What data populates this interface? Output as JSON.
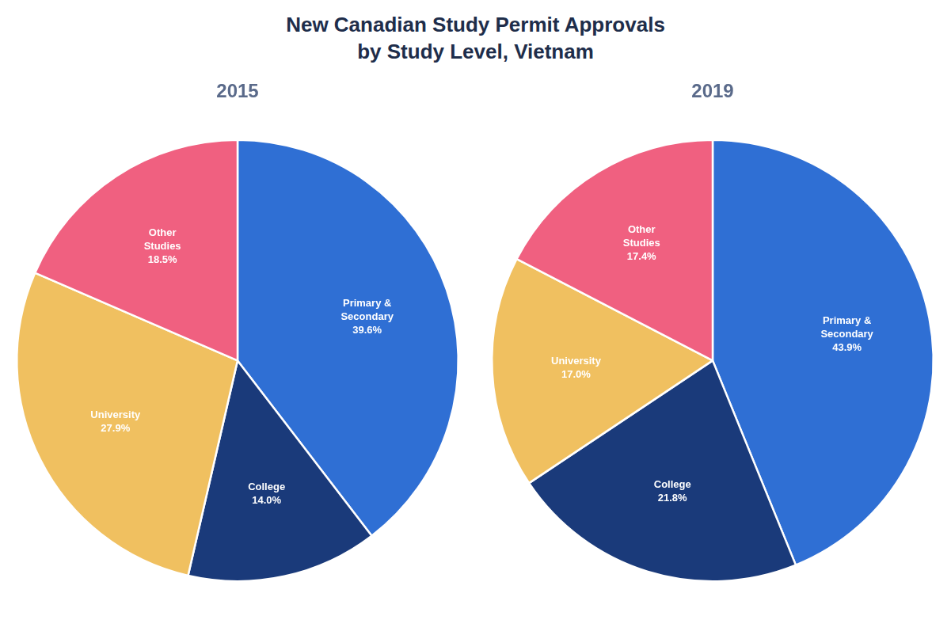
{
  "title": "New Canadian Study Permit Approvals\nby Study Level, Vietnam",
  "chart_data": [
    {
      "type": "pie",
      "title": "2015",
      "categories": [
        "Primary &\nSecondary",
        "College",
        "University",
        "Other\nStudies"
      ],
      "values": [
        39.6,
        14.0,
        27.9,
        18.5
      ],
      "value_labels": [
        "39.6%",
        "14.0%",
        "27.9%",
        "18.5%"
      ],
      "colors": [
        "#2f6fd4",
        "#1a3a7a",
        "#f0c060",
        "#f06080"
      ],
      "data_labels": true,
      "legend": false
    },
    {
      "type": "pie",
      "title": "2019",
      "categories": [
        "Primary &\nSecondary",
        "College",
        "University",
        "Other\nStudies"
      ],
      "values": [
        43.9,
        21.8,
        17.0,
        17.4
      ],
      "value_labels": [
        "43.9%",
        "21.8%",
        "17.0%",
        "17.4%"
      ],
      "colors": [
        "#2f6fd4",
        "#1a3a7a",
        "#f0c060",
        "#f06080"
      ],
      "data_labels": true,
      "legend": false
    }
  ]
}
